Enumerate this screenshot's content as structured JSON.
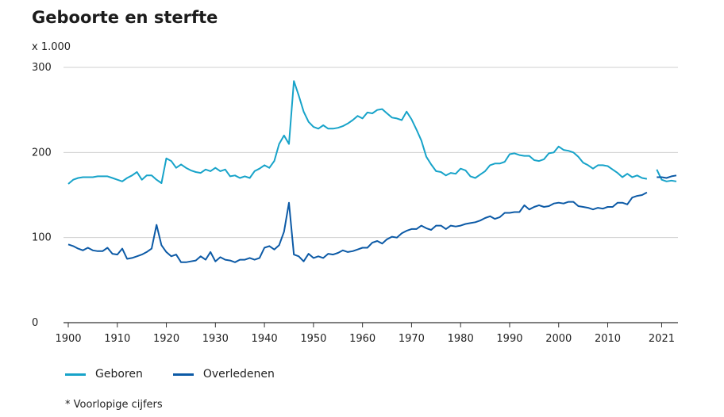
{
  "chart_data": {
    "type": "line",
    "title": "Geboorte en sterfte",
    "unit_label": "x 1.000",
    "footnote": "* Voorlopige cijfers",
    "ylim": [
      0,
      300
    ],
    "yticks": [
      0,
      100,
      200,
      300
    ],
    "xlim": [
      1900,
      2024
    ],
    "xticks": [
      1900,
      1910,
      1920,
      1930,
      1940,
      1950,
      1960,
      1970,
      1980,
      1990,
      2000,
      2010,
      2021
    ],
    "grid": "horizontal",
    "legend_position": "bottom-left",
    "series": [
      {
        "name": "Geboren",
        "color": "#17a3c9",
        "points": [
          [
            1900,
            163
          ],
          [
            1901,
            168
          ],
          [
            1902,
            170
          ],
          [
            1903,
            171
          ],
          [
            1904,
            171
          ],
          [
            1905,
            171
          ],
          [
            1906,
            172
          ],
          [
            1907,
            172
          ],
          [
            1908,
            172
          ],
          [
            1909,
            170
          ],
          [
            1910,
            168
          ],
          [
            1911,
            166
          ],
          [
            1912,
            170
          ],
          [
            1913,
            173
          ],
          [
            1914,
            177
          ],
          [
            1915,
            168
          ],
          [
            1916,
            173
          ],
          [
            1917,
            173
          ],
          [
            1918,
            168
          ],
          [
            1919,
            164
          ],
          [
            1920,
            193
          ],
          [
            1921,
            190
          ],
          [
            1922,
            182
          ],
          [
            1923,
            186
          ],
          [
            1924,
            182
          ],
          [
            1925,
            179
          ],
          [
            1926,
            177
          ],
          [
            1927,
            176
          ],
          [
            1928,
            180
          ],
          [
            1929,
            178
          ],
          [
            1930,
            182
          ],
          [
            1931,
            178
          ],
          [
            1932,
            180
          ],
          [
            1933,
            172
          ],
          [
            1934,
            173
          ],
          [
            1935,
            170
          ],
          [
            1936,
            172
          ],
          [
            1937,
            170
          ],
          [
            1938,
            178
          ],
          [
            1939,
            181
          ],
          [
            1940,
            185
          ],
          [
            1941,
            182
          ],
          [
            1942,
            190
          ],
          [
            1943,
            210
          ],
          [
            1944,
            220
          ],
          [
            1945,
            210
          ],
          [
            1946,
            284
          ],
          [
            1947,
            267
          ],
          [
            1948,
            248
          ],
          [
            1949,
            236
          ],
          [
            1950,
            230
          ],
          [
            1951,
            228
          ],
          [
            1952,
            232
          ],
          [
            1953,
            228
          ],
          [
            1954,
            228
          ],
          [
            1955,
            229
          ],
          [
            1956,
            231
          ],
          [
            1957,
            234
          ],
          [
            1958,
            238
          ],
          [
            1959,
            243
          ],
          [
            1960,
            240
          ],
          [
            1961,
            247
          ],
          [
            1962,
            246
          ],
          [
            1963,
            250
          ],
          [
            1964,
            251
          ],
          [
            1965,
            246
          ],
          [
            1966,
            241
          ],
          [
            1967,
            240
          ],
          [
            1968,
            238
          ],
          [
            1969,
            248
          ],
          [
            1970,
            239
          ],
          [
            1971,
            227
          ],
          [
            1972,
            214
          ],
          [
            1973,
            195
          ],
          [
            1974,
            186
          ],
          [
            1975,
            178
          ],
          [
            1976,
            177
          ],
          [
            1977,
            173
          ],
          [
            1978,
            176
          ],
          [
            1979,
            175
          ],
          [
            1980,
            181
          ],
          [
            1981,
            179
          ],
          [
            1982,
            172
          ],
          [
            1983,
            170
          ],
          [
            1984,
            174
          ],
          [
            1985,
            178
          ],
          [
            1986,
            185
          ],
          [
            1987,
            187
          ],
          [
            1988,
            187
          ],
          [
            1989,
            189
          ],
          [
            1990,
            198
          ],
          [
            1991,
            199
          ],
          [
            1992,
            197
          ],
          [
            1993,
            196
          ],
          [
            1994,
            196
          ],
          [
            1995,
            191
          ],
          [
            1996,
            190
          ],
          [
            1997,
            192
          ],
          [
            1998,
            199
          ],
          [
            1999,
            200
          ],
          [
            2000,
            207
          ],
          [
            2001,
            203
          ],
          [
            2002,
            202
          ],
          [
            2003,
            200
          ],
          [
            2004,
            195
          ],
          [
            2005,
            188
          ],
          [
            2006,
            185
          ],
          [
            2007,
            181
          ],
          [
            2008,
            185
          ],
          [
            2009,
            185
          ],
          [
            2010,
            184
          ],
          [
            2011,
            180
          ],
          [
            2012,
            176
          ],
          [
            2013,
            171
          ],
          [
            2014,
            175
          ],
          [
            2015,
            171
          ],
          [
            2016,
            173
          ],
          [
            2017,
            170
          ],
          [
            2018,
            169
          ]
        ],
        "provisional_points": [
          [
            2020,
            180
          ],
          [
            2021,
            168
          ],
          [
            2022,
            166
          ],
          [
            2023,
            167
          ],
          [
            2024,
            166
          ]
        ]
      },
      {
        "name": "Overledenen",
        "color": "#0c5aa6",
        "points": [
          [
            1900,
            92
          ],
          [
            1901,
            90
          ],
          [
            1902,
            87
          ],
          [
            1903,
            85
          ],
          [
            1904,
            88
          ],
          [
            1905,
            85
          ],
          [
            1906,
            84
          ],
          [
            1907,
            84
          ],
          [
            1908,
            88
          ],
          [
            1909,
            81
          ],
          [
            1910,
            80
          ],
          [
            1911,
            87
          ],
          [
            1912,
            75
          ],
          [
            1913,
            76
          ],
          [
            1914,
            78
          ],
          [
            1915,
            80
          ],
          [
            1916,
            83
          ],
          [
            1917,
            87
          ],
          [
            1918,
            115
          ],
          [
            1919,
            91
          ],
          [
            1920,
            83
          ],
          [
            1921,
            78
          ],
          [
            1922,
            80
          ],
          [
            1923,
            71
          ],
          [
            1924,
            71
          ],
          [
            1925,
            72
          ],
          [
            1926,
            73
          ],
          [
            1927,
            78
          ],
          [
            1928,
            74
          ],
          [
            1929,
            83
          ],
          [
            1930,
            72
          ],
          [
            1931,
            77
          ],
          [
            1932,
            74
          ],
          [
            1933,
            73
          ],
          [
            1934,
            71
          ],
          [
            1935,
            74
          ],
          [
            1936,
            74
          ],
          [
            1937,
            76
          ],
          [
            1938,
            74
          ],
          [
            1939,
            76
          ],
          [
            1940,
            88
          ],
          [
            1941,
            90
          ],
          [
            1942,
            86
          ],
          [
            1943,
            91
          ],
          [
            1944,
            107
          ],
          [
            1945,
            141
          ],
          [
            1946,
            80
          ],
          [
            1947,
            78
          ],
          [
            1948,
            72
          ],
          [
            1949,
            81
          ],
          [
            1950,
            76
          ],
          [
            1951,
            78
          ],
          [
            1952,
            76
          ],
          [
            1953,
            81
          ],
          [
            1954,
            80
          ],
          [
            1955,
            82
          ],
          [
            1956,
            85
          ],
          [
            1957,
            83
          ],
          [
            1958,
            84
          ],
          [
            1959,
            86
          ],
          [
            1960,
            88
          ],
          [
            1961,
            88
          ],
          [
            1962,
            94
          ],
          [
            1963,
            96
          ],
          [
            1964,
            93
          ],
          [
            1965,
            98
          ],
          [
            1966,
            101
          ],
          [
            1967,
            100
          ],
          [
            1968,
            105
          ],
          [
            1969,
            108
          ],
          [
            1970,
            110
          ],
          [
            1971,
            110
          ],
          [
            1972,
            114
          ],
          [
            1973,
            111
          ],
          [
            1974,
            109
          ],
          [
            1975,
            114
          ],
          [
            1976,
            114
          ],
          [
            1977,
            110
          ],
          [
            1978,
            114
          ],
          [
            1979,
            113
          ],
          [
            1980,
            114
          ],
          [
            1981,
            116
          ],
          [
            1982,
            117
          ],
          [
            1983,
            118
          ],
          [
            1984,
            120
          ],
          [
            1985,
            123
          ],
          [
            1986,
            125
          ],
          [
            1987,
            122
          ],
          [
            1988,
            124
          ],
          [
            1989,
            129
          ],
          [
            1990,
            129
          ],
          [
            1991,
            130
          ],
          [
            1992,
            130
          ],
          [
            1993,
            138
          ],
          [
            1994,
            133
          ],
          [
            1995,
            136
          ],
          [
            1996,
            138
          ],
          [
            1997,
            136
          ],
          [
            1998,
            137
          ],
          [
            1999,
            140
          ],
          [
            2000,
            141
          ],
          [
            2001,
            140
          ],
          [
            2002,
            142
          ],
          [
            2003,
            142
          ],
          [
            2004,
            137
          ],
          [
            2005,
            136
          ],
          [
            2006,
            135
          ],
          [
            2007,
            133
          ],
          [
            2008,
            135
          ],
          [
            2009,
            134
          ],
          [
            2010,
            136
          ],
          [
            2011,
            136
          ],
          [
            2012,
            141
          ],
          [
            2013,
            141
          ],
          [
            2014,
            139
          ],
          [
            2015,
            147
          ],
          [
            2016,
            149
          ],
          [
            2017,
            150
          ],
          [
            2018,
            153
          ]
        ],
        "provisional_points": [
          [
            2020,
            171
          ],
          [
            2021,
            171
          ],
          [
            2022,
            170
          ],
          [
            2023,
            172
          ],
          [
            2024,
            173
          ]
        ]
      }
    ]
  }
}
